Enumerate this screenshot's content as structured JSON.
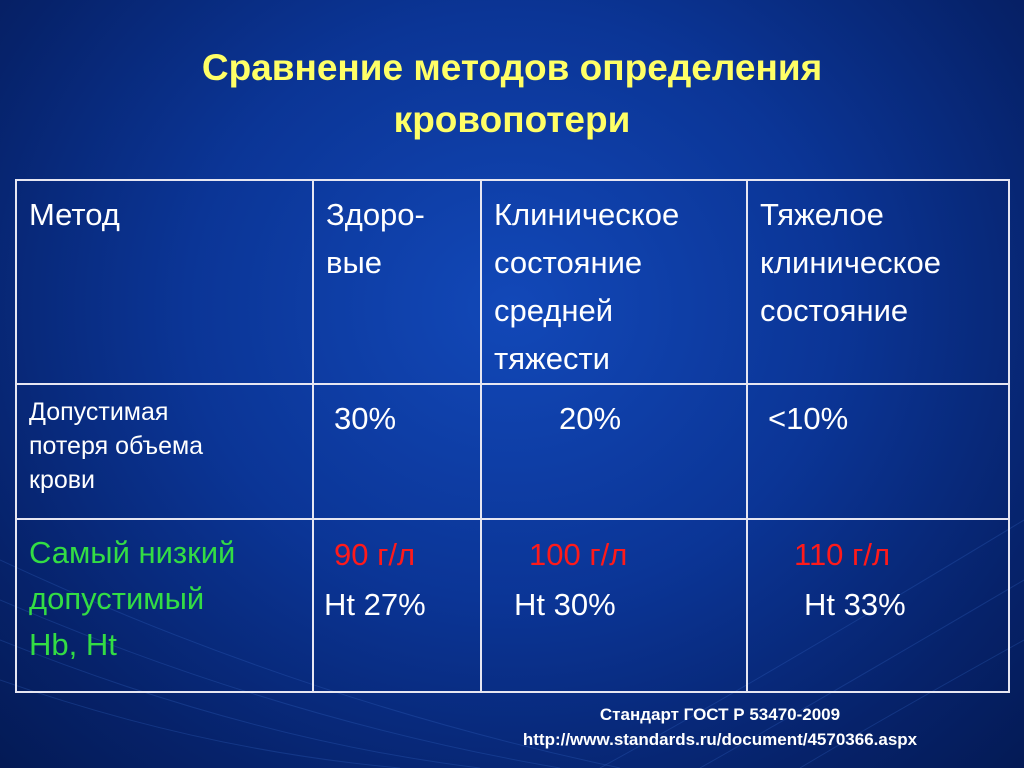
{
  "title": {
    "line1": "Сравнение методов определения",
    "line2": "кровопотери"
  },
  "table": {
    "header": {
      "c1": "Метод",
      "c2": [
        "Здоро-",
        "вые"
      ],
      "c3": [
        "Клиническое",
        "состояние",
        "средней",
        "тяжести"
      ],
      "c4": [
        "Тяжелое",
        "клиническое",
        "состояние"
      ]
    },
    "row_volume": {
      "label": [
        "Допустимая",
        "потеря объема",
        "крови"
      ],
      "healthy": "30%",
      "moderate": "20%",
      "severe": "<10%"
    },
    "row_hb": {
      "label": [
        "Самый низкий",
        "допустимый",
        "Hb, Ht"
      ],
      "healthy_hb": "90 г/л",
      "healthy_ht": "Ht 27%",
      "moderate_hb": "100 г/л",
      "moderate_ht": "Ht 30%",
      "severe_hb": "110 г/л",
      "severe_ht": "Ht 33%"
    }
  },
  "footer": {
    "line1": "Стандарт ГОСТ Р 53470-2009",
    "line2": "http://www.standards.ru/document/4570366.aspx"
  },
  "colors": {
    "title": "#ffff66",
    "green_text": "#33dd44",
    "red_text": "#ff1a1a",
    "background": "#0b3596"
  }
}
